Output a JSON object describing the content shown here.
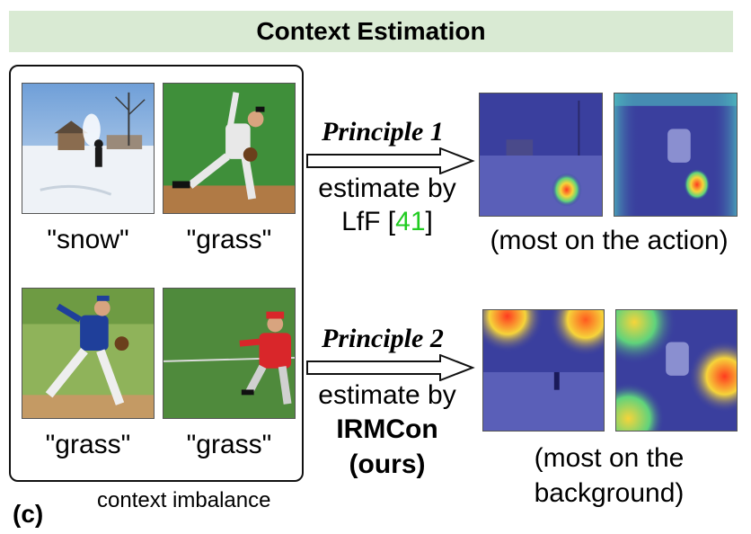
{
  "banner": {
    "title": "Context Estimation"
  },
  "panel": {
    "letter": "(c)",
    "caption": "context imbalance",
    "images": [
      {
        "label": "\"snow\"",
        "scene": "snow"
      },
      {
        "label": "\"grass\"",
        "scene": "grass"
      },
      {
        "label": "\"grass\"",
        "scene": "grass"
      },
      {
        "label": "\"grass\"",
        "scene": "grass"
      }
    ]
  },
  "principle1": {
    "title": "Principle 1",
    "line1": "estimate by",
    "line2_prefix": "LfF [",
    "ref": "41",
    "line2_suffix": "]",
    "result": "(most on the action)"
  },
  "principle2": {
    "title": "Principle 2",
    "line1": "estimate by",
    "line2": "IRMCon",
    "line3": "(ours)",
    "result_line1": "(most on the",
    "result_line2": "background)"
  },
  "colors": {
    "banner_bg": "#d9ead3",
    "reference": "#22cc22",
    "heatmap_cold": "#2a2f9a",
    "heatmap_hot": "#ff3b1f"
  }
}
